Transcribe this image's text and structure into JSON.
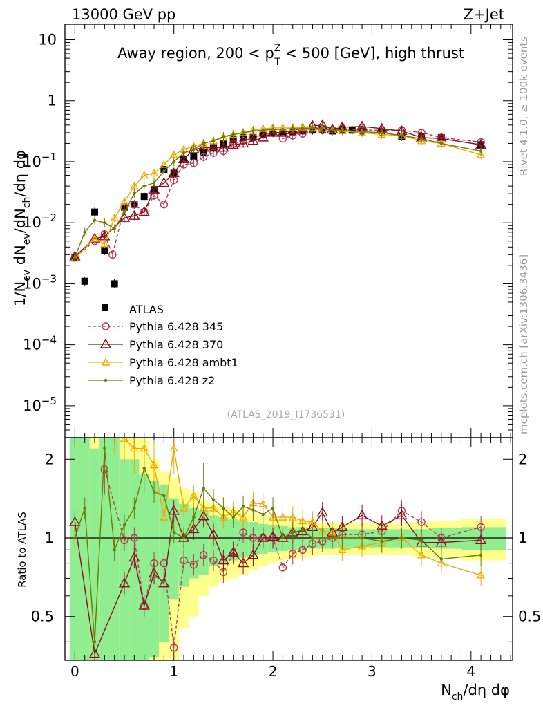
{
  "header": {
    "left": "13000 GeV pp",
    "right": "Z+Jet",
    "side_top": "Rivet 4.1.0, ≥ 100k events",
    "side_bottom": "mcplots.cern.ch [arXiv:1306.3436]",
    "watermark": "(ATLAS_2019_I1736531)"
  },
  "colors": {
    "data": "#000000",
    "p345": "#b03a4e",
    "p370": "#8b0f1f",
    "ambt1": "#f0a800",
    "z2": "#6e7a00",
    "band_green": "#90ee90",
    "band_yellow": "#ffff8c"
  },
  "chart_data": [
    {
      "type": "line",
      "panel": "main",
      "title": "Away region, 200 < p_T^Z < 500 [GeV], high thrust",
      "title_parts": {
        "pre": "Away region, 200 < p",
        "sup": "Z",
        "sub": "T",
        "post": " < 500 [GeV], high thrust"
      },
      "ylabel": "1/N_ev dN_ev/dN_ch/dη dφ",
      "ylabel_parts": {
        "a": "1/N",
        "a_sub": "ev",
        "b": " dN",
        "b_sub": "ev",
        "c": "/dN",
        "c_sub": "ch",
        "d": "/dη dφ"
      },
      "xlabel": "N_ch/dη dφ",
      "yscale": "log",
      "ylim": [
        3e-06,
        18
      ],
      "xlim": [
        -0.1,
        4.42
      ],
      "yticks": [
        {
          "v": 10,
          "label": "10"
        },
        {
          "v": 1,
          "label": "1"
        },
        {
          "v": 0.1,
          "base": "10",
          "exp": "−1"
        },
        {
          "v": 0.01,
          "base": "10",
          "exp": "−2"
        },
        {
          "v": 0.001,
          "base": "10",
          "exp": "−3"
        },
        {
          "v": 0.0001,
          "base": "10",
          "exp": "−4"
        },
        {
          "v": 1e-05,
          "base": "10",
          "exp": "−5"
        }
      ],
      "xticks": [
        "0",
        "1",
        "2",
        "3",
        "4"
      ],
      "legend": [
        "ATLAS",
        "Pythia 6.428 345",
        "Pythia 6.428 370",
        "Pythia 6.428 ambt1",
        "Pythia 6.428 z2"
      ],
      "series": [
        {
          "name": "ATLAS",
          "marker": "square",
          "x": [
            0,
            0.1,
            0.2,
            0.3,
            0.4,
            0.5,
            0.6,
            0.7,
            0.8,
            0.9,
            1.0,
            1.1,
            1.2,
            1.3,
            1.4,
            1.5,
            1.6,
            1.7,
            1.8,
            1.9,
            2.0,
            2.1,
            2.2,
            2.3,
            2.4,
            2.5,
            2.6,
            2.7,
            2.8,
            2.9,
            3.1,
            3.3,
            3.5,
            3.7,
            4.1
          ],
          "values": [
            0.0027,
            0.0011,
            0.015,
            0.0035,
            0.001,
            0.018,
            0.02,
            0.027,
            0.035,
            0.075,
            0.065,
            0.11,
            0.12,
            0.14,
            0.17,
            0.2,
            0.23,
            0.25,
            0.25,
            0.28,
            0.3,
            0.3,
            0.31,
            0.32,
            0.33,
            0.34,
            0.32,
            0.34,
            0.33,
            0.32,
            0.31,
            0.26,
            0.26,
            0.25,
            0.19
          ]
        },
        {
          "name": "Pythia 6.428 345",
          "marker": "circle",
          "dashed": true,
          "x": [
            0,
            0.2,
            0.3,
            0.38,
            0.5,
            0.6,
            0.7,
            0.8,
            0.9,
            1.0,
            1.1,
            1.2,
            1.3,
            1.4,
            1.5,
            1.6,
            1.7,
            1.8,
            1.9,
            2.0,
            2.1,
            2.2,
            2.3,
            2.5,
            2.7,
            2.9,
            3.1,
            3.3,
            3.5,
            3.7,
            4.1
          ],
          "values": [
            0.0027,
            0.005,
            0.0065,
            0.003,
            0.018,
            0.02,
            0.015,
            0.028,
            0.02,
            0.05,
            0.09,
            0.095,
            0.12,
            0.14,
            0.15,
            0.2,
            0.22,
            0.25,
            0.28,
            0.3,
            0.24,
            0.27,
            0.29,
            0.33,
            0.35,
            0.33,
            0.33,
            0.33,
            0.3,
            0.25,
            0.21
          ]
        },
        {
          "name": "Pythia 6.428 370",
          "marker": "triangle",
          "x": [
            0,
            0.2,
            0.3,
            0.5,
            0.6,
            0.7,
            0.8,
            0.9,
            1.0,
            1.1,
            1.2,
            1.3,
            1.4,
            1.5,
            1.6,
            1.7,
            1.8,
            1.9,
            2.0,
            2.1,
            2.2,
            2.3,
            2.4,
            2.5,
            2.6,
            2.7,
            2.9,
            3.1,
            3.3,
            3.5,
            3.7,
            4.1
          ],
          "values": [
            0.0028,
            0.0055,
            0.006,
            0.012,
            0.013,
            0.015,
            0.035,
            0.045,
            0.065,
            0.11,
            0.16,
            0.17,
            0.17,
            0.17,
            0.19,
            0.2,
            0.22,
            0.25,
            0.3,
            0.3,
            0.33,
            0.35,
            0.39,
            0.4,
            0.34,
            0.37,
            0.38,
            0.35,
            0.32,
            0.25,
            0.24,
            0.19
          ]
        },
        {
          "name": "Pythia 6.428 ambt1",
          "marker": "triangle-small",
          "x": [
            0,
            0.2,
            0.3,
            0.4,
            0.5,
            0.6,
            0.7,
            0.8,
            0.9,
            1.0,
            1.1,
            1.2,
            1.3,
            1.4,
            1.5,
            1.6,
            1.7,
            1.8,
            1.9,
            2.0,
            2.1,
            2.2,
            2.3,
            2.4,
            2.5,
            2.6,
            2.7,
            2.9,
            3.1,
            3.3,
            3.5,
            3.7,
            4.1
          ],
          "values": [
            0.0026,
            0.0055,
            0.0045,
            0.012,
            0.022,
            0.04,
            0.06,
            0.065,
            0.09,
            0.13,
            0.16,
            0.18,
            0.2,
            0.22,
            0.25,
            0.28,
            0.3,
            0.33,
            0.35,
            0.36,
            0.36,
            0.36,
            0.37,
            0.36,
            0.35,
            0.33,
            0.32,
            0.3,
            0.28,
            0.27,
            0.22,
            0.2,
            0.13
          ]
        },
        {
          "name": "Pythia 6.428 z2",
          "marker": "dot",
          "x": [
            0,
            0.1,
            0.2,
            0.3,
            0.4,
            0.5,
            0.6,
            0.7,
            0.8,
            0.9,
            1.0,
            1.1,
            1.2,
            1.3,
            1.4,
            1.5,
            1.6,
            1.7,
            1.8,
            1.9,
            2.0,
            2.1,
            2.2,
            2.3,
            2.4,
            2.5,
            2.6,
            2.7,
            2.9,
            3.1,
            3.3,
            3.5,
            3.7,
            4.1
          ],
          "values": [
            0.0027,
            0.007,
            0.011,
            0.01,
            0.008,
            0.015,
            0.03,
            0.04,
            0.045,
            0.07,
            0.1,
            0.14,
            0.16,
            0.2,
            0.22,
            0.26,
            0.28,
            0.3,
            0.32,
            0.33,
            0.34,
            0.34,
            0.35,
            0.35,
            0.36,
            0.35,
            0.33,
            0.33,
            0.31,
            0.3,
            0.27,
            0.24,
            0.2,
            0.15
          ]
        }
      ]
    },
    {
      "type": "line",
      "panel": "ratio",
      "ylabel": "Ratio to ATLAS",
      "xlabel": "N_ch/dη dφ",
      "xlabel_parts": {
        "a": "N",
        "a_sub": "ch",
        "b": "/dη dφ"
      },
      "yscale": "log",
      "ylim": [
        0.34,
        2.42
      ],
      "xlim": [
        -0.1,
        4.42
      ],
      "yticks": [
        "0.5",
        "1",
        "2"
      ],
      "xticks": [
        "0",
        "1",
        "2",
        "3",
        "4"
      ],
      "uncertainty_bands": {
        "x_edges": [
          -0.05,
          0.05,
          0.15,
          0.25,
          0.35,
          0.45,
          0.55,
          0.65,
          0.75,
          0.85,
          0.95,
          1.05,
          1.15,
          1.25,
          1.35,
          1.45,
          1.55,
          1.65,
          1.75,
          1.85,
          1.95,
          2.05,
          2.15,
          2.25,
          2.35,
          2.45,
          2.55,
          2.65,
          2.75,
          2.85,
          3.0,
          3.2,
          3.4,
          3.6,
          3.9,
          4.35
        ],
        "green_half_width": [
          2,
          2,
          1.2,
          2,
          2,
          1.0,
          1.0,
          0.75,
          0.65,
          0.6,
          0.42,
          0.35,
          0.3,
          0.28,
          0.22,
          0.2,
          0.18,
          0.16,
          0.15,
          0.13,
          0.12,
          0.11,
          0.1,
          0.1,
          0.09,
          0.09,
          0.09,
          0.09,
          0.08,
          0.08,
          0.08,
          0.08,
          0.08,
          0.09,
          0.1
        ],
        "yellow_half_width": [
          2,
          2,
          2,
          2,
          2,
          2,
          2,
          1.8,
          1.0,
          0.8,
          0.7,
          0.55,
          0.5,
          0.4,
          0.35,
          0.32,
          0.3,
          0.28,
          0.25,
          0.22,
          0.2,
          0.18,
          0.17,
          0.16,
          0.15,
          0.14,
          0.14,
          0.14,
          0.14,
          0.14,
          0.14,
          0.14,
          0.15,
          0.16,
          0.18
        ]
      },
      "series": [
        {
          "name": "Pythia 6.428 345",
          "x": [
            0.3,
            0.5,
            0.6,
            0.7,
            0.8,
            0.9,
            1.0,
            1.1,
            1.2,
            1.3,
            1.4,
            1.5,
            1.6,
            1.7,
            1.8,
            1.9,
            2.0,
            2.1,
            2.2,
            2.3,
            2.4,
            2.5,
            2.6,
            2.7,
            2.9,
            3.1,
            3.3,
            3.5,
            3.7,
            4.1
          ],
          "values": [
            1.83,
            0.98,
            1.0,
            0.55,
            0.8,
            0.8,
            0.38,
            0.82,
            0.79,
            0.86,
            0.82,
            0.74,
            0.87,
            1.05,
            1.0,
            1.0,
            1.0,
            0.77,
            0.87,
            0.9,
            0.95,
            0.97,
            1.0,
            1.03,
            1.03,
            1.06,
            1.27,
            1.15,
            1.0,
            1.1
          ]
        },
        {
          "name": "Pythia 6.428 370",
          "x": [
            0,
            0.2,
            0.5,
            0.6,
            0.7,
            0.8,
            0.9,
            1.0,
            1.1,
            1.2,
            1.3,
            1.4,
            1.5,
            1.6,
            1.7,
            1.8,
            1.9,
            2.0,
            2.1,
            2.2,
            2.3,
            2.4,
            2.5,
            2.6,
            2.7,
            2.9,
            3.1,
            3.3,
            3.5,
            3.7,
            4.1
          ],
          "values": [
            1.15,
            0.36,
            0.67,
            0.84,
            0.55,
            0.73,
            0.67,
            1.27,
            1.0,
            1.08,
            1.21,
            1.03,
            0.82,
            0.88,
            0.8,
            0.86,
            1.0,
            1.01,
            1.0,
            1.05,
            1.06,
            1.1,
            1.25,
            1.05,
            1.1,
            1.22,
            1.11,
            1.22,
            0.96,
            0.96,
            0.98
          ]
        },
        {
          "name": "Pythia 6.428 ambt1",
          "x": [
            0.4,
            0.5,
            0.6,
            0.7,
            0.8,
            0.9,
            1.0,
            1.1,
            1.2,
            1.3,
            1.4,
            1.5,
            1.6,
            1.7,
            1.8,
            1.9,
            2.0,
            2.1,
            2.2,
            2.3,
            2.4,
            2.5,
            2.6,
            2.7,
            2.9,
            3.1,
            3.3,
            3.5,
            3.7,
            4.1
          ],
          "values": [
            2.6,
            2.4,
            2.2,
            2.2,
            1.9,
            1.2,
            2.2,
            1.3,
            1.45,
            1.3,
            1.3,
            1.2,
            1.26,
            1.2,
            1.36,
            1.35,
            1.2,
            1.2,
            1.2,
            1.16,
            1.15,
            1.06,
            1.05,
            0.9,
            0.93,
            0.96,
            1.0,
            0.86,
            0.8,
            0.72
          ]
        },
        {
          "name": "Pythia 6.428 z2",
          "x": [
            0,
            0.1,
            0.2,
            0.3,
            0.4,
            0.5,
            0.6,
            0.7,
            0.8,
            0.9,
            1.0,
            1.1,
            1.2,
            1.3,
            1.4,
            1.5,
            1.6,
            1.7,
            1.8,
            1.9,
            2.0,
            2.1,
            2.2,
            2.3,
            2.4,
            2.5,
            2.6,
            2.7,
            2.9,
            3.1,
            3.3,
            3.5,
            3.7,
            4.1
          ],
          "values": [
            1.0,
            1.3,
            0.4,
            2.2,
            0.9,
            1.12,
            1.3,
            1.85,
            1.5,
            1.45,
            1.05,
            1.0,
            1.2,
            1.55,
            1.4,
            1.3,
            1.2,
            1.32,
            1.28,
            1.23,
            1.3,
            1.0,
            1.05,
            1.07,
            1.0,
            1.0,
            1.0,
            1.0,
            1.0,
            0.97,
            1.0,
            0.98,
            0.83,
            0.86
          ]
        }
      ]
    }
  ]
}
